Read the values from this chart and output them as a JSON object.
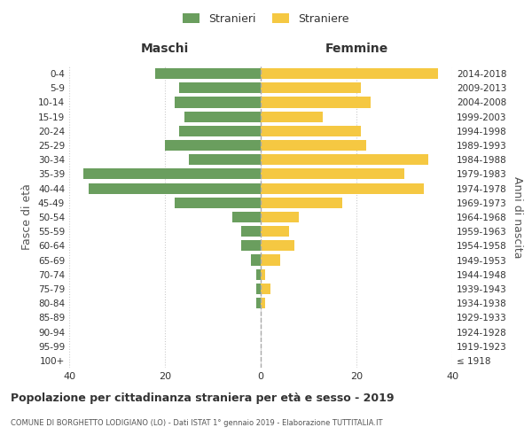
{
  "age_groups": [
    "100+",
    "95-99",
    "90-94",
    "85-89",
    "80-84",
    "75-79",
    "70-74",
    "65-69",
    "60-64",
    "55-59",
    "50-54",
    "45-49",
    "40-44",
    "35-39",
    "30-34",
    "25-29",
    "20-24",
    "15-19",
    "10-14",
    "5-9",
    "0-4"
  ],
  "birth_years": [
    "≤ 1918",
    "1919-1923",
    "1924-1928",
    "1929-1933",
    "1934-1938",
    "1939-1943",
    "1944-1948",
    "1949-1953",
    "1954-1958",
    "1959-1963",
    "1964-1968",
    "1969-1973",
    "1974-1978",
    "1979-1983",
    "1984-1988",
    "1989-1993",
    "1994-1998",
    "1999-2003",
    "2004-2008",
    "2009-2013",
    "2014-2018"
  ],
  "males": [
    0,
    0,
    0,
    0,
    1,
    1,
    1,
    2,
    4,
    4,
    6,
    18,
    36,
    37,
    15,
    20,
    17,
    16,
    18,
    17,
    22
  ],
  "females": [
    0,
    0,
    0,
    0,
    1,
    2,
    1,
    4,
    7,
    6,
    8,
    17,
    34,
    30,
    35,
    22,
    21,
    13,
    23,
    21,
    37
  ],
  "male_color": "#6a9e5e",
  "female_color": "#f5c842",
  "bar_height": 0.75,
  "xlim": 40,
  "title": "Popolazione per cittadinanza straniera per età e sesso - 2019",
  "subtitle": "COMUNE DI BORGHETTO LODIGIANO (LO) - Dati ISTAT 1° gennaio 2019 - Elaborazione TUTTITALIA.IT",
  "ylabel_left": "Fasce di età",
  "ylabel_right": "Anni di nascita",
  "xlabel_left": "Maschi",
  "xlabel_right": "Femmine",
  "legend_male": "Stranieri",
  "legend_female": "Straniere",
  "background_color": "#ffffff",
  "grid_color": "#cccccc",
  "text_color": "#333333",
  "axis_label_color": "#555555",
  "dashed_line_color": "#aaaaaa"
}
